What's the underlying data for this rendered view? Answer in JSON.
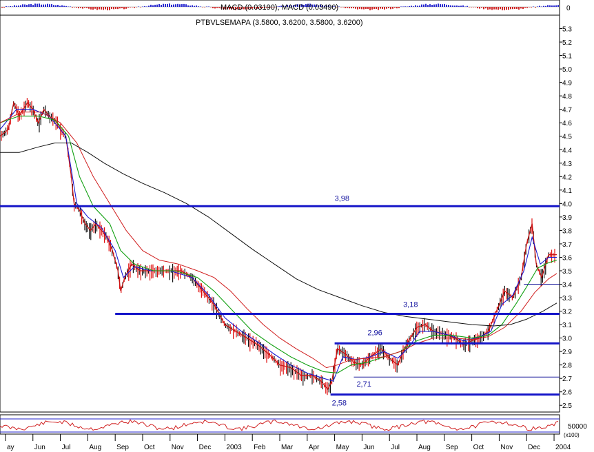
{
  "chart_data": {
    "type": "line",
    "panels": {
      "macd": {
        "title": "MACD (0.03190), MACD (0.03490)",
        "zero_label": "0"
      },
      "price": {
        "title": "PTBVLSEMAPA (3.5800, 3.6200, 3.5800, 3.6200)",
        "ylim": [
          2.45,
          5.4
        ],
        "y_ticks": [
          2.5,
          2.6,
          2.7,
          2.8,
          2.9,
          3.0,
          3.1,
          3.2,
          3.3,
          3.4,
          3.5,
          3.6,
          3.7,
          3.8,
          3.9,
          4.0,
          4.1,
          4.2,
          4.3,
          4.4,
          4.5,
          4.6,
          4.7,
          4.8,
          4.9,
          5.0,
          5.1,
          5.2,
          5.3
        ]
      },
      "volume": {
        "level_label": "50000",
        "multiplier_label": "(x100)"
      }
    },
    "x_months": [
      "ay",
      "Jun",
      "Jul",
      "Aug",
      "Sep",
      "Oct",
      "Nov",
      "Dec",
      "2003",
      "Feb",
      "Mar",
      "Apr",
      "May",
      "Jun",
      "Jul",
      "Aug",
      "Sep",
      "Oct",
      "Nov",
      "Dec",
      "2004"
    ],
    "x_month_index": [
      0,
      1,
      2,
      3,
      4,
      5,
      6,
      7,
      8,
      9,
      10,
      11,
      12,
      13,
      14,
      15,
      16,
      17,
      18,
      19,
      20
    ],
    "x_range": [
      -0.2,
      20.2
    ],
    "levels": [
      {
        "value": 3.98,
        "label": "3,98",
        "from": -0.2,
        "to": 20.2,
        "bold": true
      },
      {
        "value": 3.18,
        "label": "3,18",
        "from": 4.0,
        "to": 20.2,
        "bold": true
      },
      {
        "value": 2.96,
        "label": "2,96",
        "from": 12.0,
        "to": 20.2,
        "bold": true
      },
      {
        "value": 2.71,
        "label": "2,71",
        "from": 12.7,
        "to": 20.2,
        "bold": false
      },
      {
        "value": 2.58,
        "label": "2,58",
        "from": 11.85,
        "to": 20.2,
        "bold": true
      },
      {
        "value": 3.4,
        "label": "",
        "from": 18.9,
        "to": 20.2,
        "bold": false
      }
    ],
    "series": [
      {
        "key": "price",
        "color": "#c81414",
        "width": 1.3,
        "points": [
          [
            -0.2,
            4.5
          ],
          [
            0.1,
            4.55
          ],
          [
            0.3,
            4.75
          ],
          [
            0.5,
            4.65
          ],
          [
            0.8,
            4.75
          ],
          [
            1.0,
            4.7
          ],
          [
            1.2,
            4.6
          ],
          [
            1.4,
            4.7
          ],
          [
            1.6,
            4.65
          ],
          [
            1.9,
            4.6
          ],
          [
            2.0,
            4.55
          ],
          [
            2.2,
            4.5
          ],
          [
            2.4,
            4.2
          ],
          [
            2.5,
            4.0
          ],
          [
            2.7,
            3.95
          ],
          [
            2.9,
            3.85
          ],
          [
            3.1,
            3.8
          ],
          [
            3.3,
            3.85
          ],
          [
            3.5,
            3.8
          ],
          [
            3.7,
            3.75
          ],
          [
            3.9,
            3.65
          ],
          [
            4.1,
            3.5
          ],
          [
            4.2,
            3.35
          ],
          [
            4.35,
            3.45
          ],
          [
            4.6,
            3.55
          ],
          [
            4.9,
            3.5
          ],
          [
            5.2,
            3.5
          ],
          [
            5.6,
            3.5
          ],
          [
            6.0,
            3.5
          ],
          [
            6.4,
            3.5
          ],
          [
            6.8,
            3.45
          ],
          [
            7.2,
            3.35
          ],
          [
            7.6,
            3.25
          ],
          [
            8.0,
            3.1
          ],
          [
            8.4,
            3.05
          ],
          [
            8.8,
            3.0
          ],
          [
            9.2,
            2.95
          ],
          [
            9.6,
            2.88
          ],
          [
            10.0,
            2.8
          ],
          [
            10.4,
            2.78
          ],
          [
            10.8,
            2.72
          ],
          [
            11.2,
            2.72
          ],
          [
            11.5,
            2.68
          ],
          [
            11.75,
            2.62
          ],
          [
            11.9,
            2.68
          ],
          [
            12.1,
            2.92
          ],
          [
            12.4,
            2.88
          ],
          [
            12.7,
            2.82
          ],
          [
            13.0,
            2.8
          ],
          [
            13.3,
            2.86
          ],
          [
            13.7,
            2.92
          ],
          [
            14.0,
            2.85
          ],
          [
            14.3,
            2.8
          ],
          [
            14.5,
            2.9
          ],
          [
            14.7,
            2.98
          ],
          [
            15.0,
            3.08
          ],
          [
            15.3,
            3.1
          ],
          [
            15.6,
            3.05
          ],
          [
            16.0,
            3.03
          ],
          [
            16.4,
            3.0
          ],
          [
            16.7,
            2.95
          ],
          [
            17.0,
            2.98
          ],
          [
            17.3,
            3.0
          ],
          [
            17.6,
            3.05
          ],
          [
            17.9,
            3.2
          ],
          [
            18.2,
            3.35
          ],
          [
            18.5,
            3.3
          ],
          [
            18.8,
            3.45
          ],
          [
            19.0,
            3.7
          ],
          [
            19.2,
            3.85
          ],
          [
            19.35,
            3.55
          ],
          [
            19.55,
            3.45
          ],
          [
            19.8,
            3.62
          ],
          [
            20.1,
            3.62
          ]
        ]
      },
      {
        "key": "ema-short",
        "color": "#1a1ad2",
        "width": 1.1,
        "points": [
          [
            -0.2,
            4.55
          ],
          [
            0.4,
            4.7
          ],
          [
            1.0,
            4.7
          ],
          [
            1.6,
            4.65
          ],
          [
            2.2,
            4.5
          ],
          [
            2.6,
            4.0
          ],
          [
            3.0,
            3.9
          ],
          [
            3.5,
            3.82
          ],
          [
            4.0,
            3.65
          ],
          [
            4.3,
            3.45
          ],
          [
            4.7,
            3.53
          ],
          [
            5.3,
            3.5
          ],
          [
            6.0,
            3.5
          ],
          [
            6.8,
            3.45
          ],
          [
            7.4,
            3.32
          ],
          [
            8.0,
            3.15
          ],
          [
            8.6,
            3.05
          ],
          [
            9.2,
            2.97
          ],
          [
            9.8,
            2.88
          ],
          [
            10.4,
            2.8
          ],
          [
            11.0,
            2.74
          ],
          [
            11.6,
            2.7
          ],
          [
            11.95,
            2.68
          ],
          [
            12.3,
            2.86
          ],
          [
            12.8,
            2.84
          ],
          [
            13.3,
            2.86
          ],
          [
            13.8,
            2.9
          ],
          [
            14.3,
            2.85
          ],
          [
            14.7,
            2.93
          ],
          [
            15.1,
            3.05
          ],
          [
            15.6,
            3.05
          ],
          [
            16.2,
            3.02
          ],
          [
            16.7,
            2.98
          ],
          [
            17.2,
            3.0
          ],
          [
            17.7,
            3.05
          ],
          [
            18.1,
            3.25
          ],
          [
            18.5,
            3.32
          ],
          [
            18.9,
            3.5
          ],
          [
            19.2,
            3.75
          ],
          [
            19.5,
            3.55
          ],
          [
            19.8,
            3.6
          ],
          [
            20.1,
            3.6
          ]
        ]
      },
      {
        "key": "ema-medium",
        "color": "#12a012",
        "width": 1.1,
        "points": [
          [
            -0.2,
            4.6
          ],
          [
            0.5,
            4.65
          ],
          [
            1.2,
            4.65
          ],
          [
            1.8,
            4.62
          ],
          [
            2.3,
            4.5
          ],
          [
            2.7,
            4.2
          ],
          [
            3.2,
            3.98
          ],
          [
            3.8,
            3.85
          ],
          [
            4.2,
            3.65
          ],
          [
            4.7,
            3.55
          ],
          [
            5.4,
            3.5
          ],
          [
            6.2,
            3.5
          ],
          [
            7.0,
            3.45
          ],
          [
            7.6,
            3.35
          ],
          [
            8.3,
            3.2
          ],
          [
            9.0,
            3.05
          ],
          [
            9.7,
            2.95
          ],
          [
            10.4,
            2.86
          ],
          [
            11.0,
            2.8
          ],
          [
            11.6,
            2.75
          ],
          [
            12.1,
            2.74
          ],
          [
            12.6,
            2.8
          ],
          [
            13.2,
            2.82
          ],
          [
            13.8,
            2.86
          ],
          [
            14.4,
            2.9
          ],
          [
            15.0,
            2.98
          ],
          [
            15.6,
            3.02
          ],
          [
            16.3,
            3.02
          ],
          [
            17.0,
            3.0
          ],
          [
            17.6,
            3.02
          ],
          [
            18.1,
            3.1
          ],
          [
            18.6,
            3.25
          ],
          [
            19.0,
            3.38
          ],
          [
            19.4,
            3.52
          ],
          [
            19.8,
            3.56
          ],
          [
            20.1,
            3.58
          ]
        ]
      },
      {
        "key": "ema-long",
        "color": "#d01e1e",
        "width": 1.0,
        "points": [
          [
            -0.2,
            4.6
          ],
          [
            0.6,
            4.68
          ],
          [
            1.3,
            4.68
          ],
          [
            2.0,
            4.6
          ],
          [
            2.6,
            4.45
          ],
          [
            3.2,
            4.2
          ],
          [
            3.8,
            4.0
          ],
          [
            4.4,
            3.8
          ],
          [
            5.0,
            3.65
          ],
          [
            5.6,
            3.58
          ],
          [
            6.3,
            3.55
          ],
          [
            7.0,
            3.5
          ],
          [
            7.6,
            3.45
          ],
          [
            8.2,
            3.35
          ],
          [
            8.8,
            3.22
          ],
          [
            9.4,
            3.1
          ],
          [
            10.0,
            3.0
          ],
          [
            10.6,
            2.92
          ],
          [
            11.2,
            2.85
          ],
          [
            11.7,
            2.78
          ],
          [
            12.1,
            2.8
          ],
          [
            12.6,
            2.84
          ],
          [
            13.2,
            2.85
          ],
          [
            13.8,
            2.86
          ],
          [
            14.4,
            2.9
          ],
          [
            15.0,
            2.96
          ],
          [
            15.6,
            3.0
          ],
          [
            16.3,
            3.0
          ],
          [
            17.0,
            2.99
          ],
          [
            17.6,
            3.01
          ],
          [
            18.2,
            3.08
          ],
          [
            18.8,
            3.2
          ],
          [
            19.3,
            3.34
          ],
          [
            19.8,
            3.44
          ],
          [
            20.1,
            3.48
          ]
        ]
      },
      {
        "key": "ma-200",
        "color": "#111111",
        "width": 1.0,
        "points": [
          [
            -0.2,
            4.38
          ],
          [
            0.5,
            4.38
          ],
          [
            1.2,
            4.42
          ],
          [
            1.8,
            4.45
          ],
          [
            2.4,
            4.45
          ],
          [
            3.0,
            4.38
          ],
          [
            3.6,
            4.3
          ],
          [
            4.3,
            4.22
          ],
          [
            5.0,
            4.15
          ],
          [
            5.8,
            4.08
          ],
          [
            6.6,
            4.0
          ],
          [
            7.4,
            3.9
          ],
          [
            8.2,
            3.78
          ],
          [
            9.0,
            3.66
          ],
          [
            9.8,
            3.55
          ],
          [
            10.6,
            3.44
          ],
          [
            11.4,
            3.36
          ],
          [
            12.2,
            3.3
          ],
          [
            13.0,
            3.24
          ],
          [
            13.8,
            3.19
          ],
          [
            14.6,
            3.16
          ],
          [
            15.4,
            3.14
          ],
          [
            16.2,
            3.12
          ],
          [
            17.0,
            3.1
          ],
          [
            17.8,
            3.09
          ],
          [
            18.4,
            3.1
          ],
          [
            19.0,
            3.14
          ],
          [
            19.6,
            3.2
          ],
          [
            20.1,
            3.26
          ]
        ]
      }
    ],
    "grid": false,
    "legend": "none"
  }
}
